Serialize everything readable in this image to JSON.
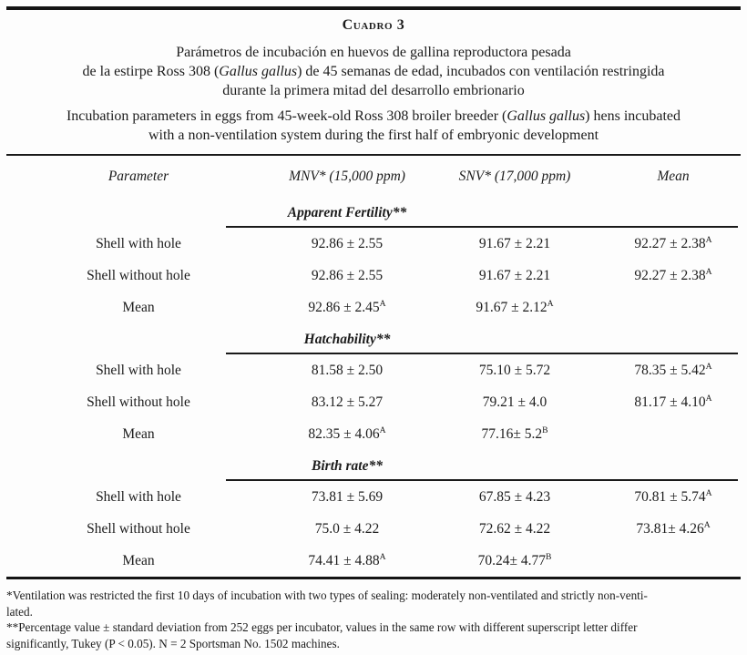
{
  "caption": {
    "label": "Cuadro 3"
  },
  "title_es": {
    "line1": "Parámetros de incubación en huevos de gallina reproductora pesada",
    "line2_pre": "de la estirpe Ross 308 (",
    "line2_italic": "Gallus gallus",
    "line2_post": ") de 45 semanas de edad, incubados con ventilación restringida",
    "line3": "durante la primera mitad del desarrollo embrionario"
  },
  "title_en": {
    "line1_pre": "Incubation parameters in eggs from 45-week-old Ross 308 broiler breeder (",
    "line1_italic": "Gallus gallus",
    "line1_post": ") hens incubated",
    "line2": "with a non-ventilation system during the first half of embryonic development"
  },
  "table": {
    "headers": {
      "parameter": "Parameter",
      "mnv": "MNV* (15,000 ppm)",
      "snv": "SNV* (17,000 ppm)",
      "mean": "Mean"
    },
    "sections": [
      {
        "title": "Apparent Fertility**",
        "rows": [
          {
            "label": "Shell with hole",
            "mnv": {
              "v": "92.86 ± 2.55",
              "s": ""
            },
            "snv": {
              "v": "91.67 ± 2.21",
              "s": ""
            },
            "mean": {
              "v": "92.27 ± 2.38",
              "s": "A"
            }
          },
          {
            "label": "Shell without hole",
            "mnv": {
              "v": "92.86 ± 2.55",
              "s": ""
            },
            "snv": {
              "v": "91.67 ± 2.21",
              "s": ""
            },
            "mean": {
              "v": "92.27 ± 2.38",
              "s": "A"
            }
          },
          {
            "label": "Mean",
            "mnv": {
              "v": "92.86 ± 2.45",
              "s": "A"
            },
            "snv": {
              "v": "91.67 ± 2.12",
              "s": "A"
            },
            "mean": {
              "v": "",
              "s": ""
            }
          }
        ]
      },
      {
        "title": "Hatchability**",
        "rows": [
          {
            "label": "Shell with hole",
            "mnv": {
              "v": "81.58 ± 2.50",
              "s": ""
            },
            "snv": {
              "v": "75.10 ± 5.72",
              "s": ""
            },
            "mean": {
              "v": "78.35 ± 5.42",
              "s": "A"
            }
          },
          {
            "label": "Shell without hole",
            "mnv": {
              "v": "83.12 ± 5.27",
              "s": ""
            },
            "snv": {
              "v": "79.21 ± 4.0",
              "s": ""
            },
            "mean": {
              "v": "81.17 ± 4.10",
              "s": "A"
            }
          },
          {
            "label": "Mean",
            "mnv": {
              "v": "82.35 ± 4.06",
              "s": "A"
            },
            "snv": {
              "v": "77.16± 5.2",
              "s": "B"
            },
            "mean": {
              "v": "",
              "s": ""
            }
          }
        ]
      },
      {
        "title": "Birth rate**",
        "rows": [
          {
            "label": "Shell with hole",
            "mnv": {
              "v": "73.81 ± 5.69",
              "s": ""
            },
            "snv": {
              "v": "67.85 ± 4.23",
              "s": ""
            },
            "mean": {
              "v": "70.81 ± 5.74",
              "s": "A"
            }
          },
          {
            "label": "Shell without hole",
            "mnv": {
              "v": "75.0 ± 4.22",
              "s": ""
            },
            "snv": {
              "v": "72.62 ± 4.22",
              "s": ""
            },
            "mean": {
              "v": "73.81± 4.26",
              "s": "A"
            }
          },
          {
            "label": "Mean",
            "mnv": {
              "v": "74.41 ± 4.88",
              "s": "A"
            },
            "snv": {
              "v": "70.24± 4.77",
              "s": "B"
            },
            "mean": {
              "v": "",
              "s": ""
            }
          }
        ]
      }
    ]
  },
  "footnotes": {
    "line1": "*Ventilation was restricted the first 10 days of incubation with two types of sealing: moderately non-ventilated and strictly non-venti-",
    "line2": "lated.",
    "line3": "**Percentage value ± standard deviation from 252 eggs per incubator, values in the same row with different superscript letter differ",
    "line4": "significantly, Tukey (P < 0.05). N = 2 Sportsman No. 1502 machines."
  }
}
